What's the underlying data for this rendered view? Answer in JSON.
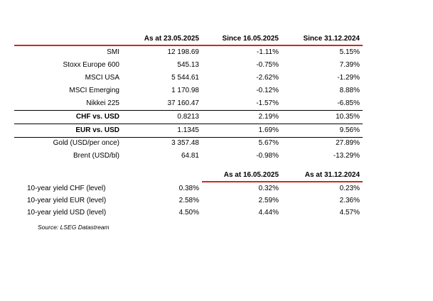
{
  "header": {
    "col1": "As at 23.05.2025",
    "col2": "Since 16.05.2025",
    "col3": "Since 31.12.2024"
  },
  "rows": [
    {
      "label": "SMI",
      "v1": "12 198.69",
      "v2": "-1.11%",
      "v3": "5.15%"
    },
    {
      "label": "Stoxx Europe 600",
      "v1": "545.13",
      "v2": "-0.75%",
      "v3": "7.39%"
    },
    {
      "label": "MSCI USA",
      "v1": "5 544.61",
      "v2": "-2.62%",
      "v3": "-1.29%"
    },
    {
      "label": "MSCI Emerging",
      "v1": "1 170.98",
      "v2": "-0.12%",
      "v3": "8.88%"
    },
    {
      "label": "Nikkei 225",
      "v1": "37 160.47",
      "v2": "-1.57%",
      "v3": "-6.85%"
    },
    {
      "label": "CHF vs. USD",
      "v1": "0.8213",
      "v2": "2.19%",
      "v3": "10.35%"
    },
    {
      "label": "EUR vs. USD",
      "v1": "1.1345",
      "v2": "1.69%",
      "v3": "9.56%"
    },
    {
      "label": "Gold (USD/per once)",
      "v1": "3 357.48",
      "v2": "5.67%",
      "v3": "27.89%"
    },
    {
      "label": "Brent (USD/bl)",
      "v1": "64.81",
      "v2": "-0.98%",
      "v3": "-13.29%"
    }
  ],
  "yields_header": {
    "col2": "As at 16.05.2025",
    "col3": "As at 31.12.2024"
  },
  "yields": [
    {
      "label": "10-year yield CHF (level)",
      "v1": "0.38%",
      "v2": "0.32%",
      "v3": "0.23%"
    },
    {
      "label": "10-year yield EUR (level)",
      "v1": "2.58%",
      "v2": "2.59%",
      "v3": "2.36%"
    },
    {
      "label": "10-year yield USD (level)",
      "v1": "4.50%",
      "v2": "4.44%",
      "v3": "4.57%"
    }
  ],
  "source": "Source: LSEG Datastream",
  "colors": {
    "accent": "#cc2b1d"
  }
}
